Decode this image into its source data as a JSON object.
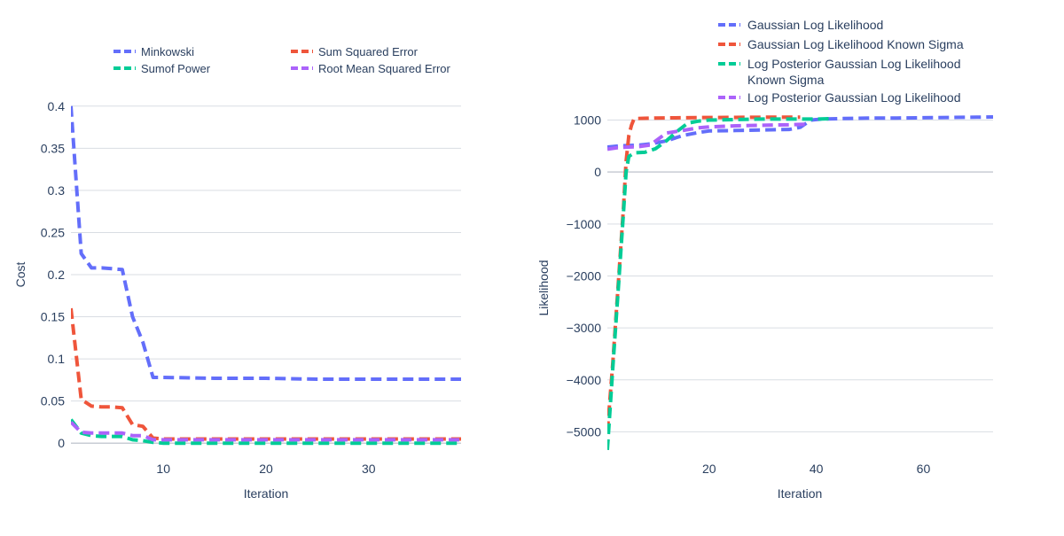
{
  "chart_data": [
    {
      "type": "line",
      "xlabel": "Iteration",
      "ylabel": "Cost",
      "xlim": [
        1,
        39
      ],
      "ylim": [
        -0.005,
        0.405
      ],
      "xticks": [
        10,
        20,
        30
      ],
      "yticks": [
        0,
        0.05,
        0.1,
        0.15,
        0.2,
        0.25,
        0.3,
        0.35,
        0.4
      ],
      "ytick_labels": [
        "0",
        "0.05",
        "0.1",
        "0.15",
        "0.2",
        "0.25",
        "0.3",
        "0.35",
        "0.4"
      ],
      "grid": true,
      "legend_placement": "top",
      "series": [
        {
          "name": "Minkowski",
          "color": "#636efa",
          "dash": "dash",
          "x": [
            1,
            2,
            3,
            4,
            5,
            6,
            7,
            8,
            9,
            10,
            15,
            20,
            25,
            30,
            35,
            39
          ],
          "y": [
            0.4,
            0.225,
            0.208,
            0.208,
            0.207,
            0.206,
            0.15,
            0.12,
            0.078,
            0.078,
            0.077,
            0.077,
            0.076,
            0.076,
            0.076,
            0.076
          ]
        },
        {
          "name": "Sum Squared Error",
          "color": "#EF553B",
          "dash": "dash",
          "x": [
            1,
            2,
            3,
            4,
            5,
            6,
            7,
            8,
            9,
            10,
            15,
            20,
            25,
            30,
            35,
            39
          ],
          "y": [
            0.16,
            0.052,
            0.044,
            0.043,
            0.043,
            0.042,
            0.022,
            0.02,
            0.006,
            0.005,
            0.005,
            0.005,
            0.005,
            0.005,
            0.005,
            0.005
          ]
        },
        {
          "name": "Sumof Power",
          "color": "#00cc96",
          "dash": "dash",
          "x": [
            1,
            2,
            3,
            4,
            5,
            6,
            7,
            8,
            9,
            10,
            15,
            20,
            25,
            30,
            35,
            39
          ],
          "y": [
            0.028,
            0.012,
            0.009,
            0.008,
            0.008,
            0.008,
            0.004,
            0.003,
            0.001,
            0.0,
            0.0,
            0.0,
            0.0,
            0.0,
            0.0,
            0.0
          ]
        },
        {
          "name": "Root Mean Squared Error",
          "color": "#ab63fa",
          "dash": "dash",
          "x": [
            1,
            2,
            3,
            4,
            5,
            6,
            7,
            8,
            9,
            10,
            15,
            20,
            25,
            30,
            35,
            39
          ],
          "y": [
            0.025,
            0.013,
            0.012,
            0.012,
            0.012,
            0.012,
            0.009,
            0.009,
            0.004,
            0.004,
            0.004,
            0.004,
            0.004,
            0.004,
            0.004,
            0.004
          ]
        }
      ]
    },
    {
      "type": "line",
      "xlabel": "Iteration",
      "ylabel": "Likelihood",
      "xlim": [
        1,
        73
      ],
      "ylim": [
        -5300,
        1350
      ],
      "xticks": [
        20,
        40,
        60
      ],
      "yticks": [
        -5000,
        -4000,
        -3000,
        -2000,
        -1000,
        0,
        1000
      ],
      "ytick_labels": [
        "−5000",
        "−4000",
        "−3000",
        "−2000",
        "−1000",
        "0",
        "1000"
      ],
      "grid": true,
      "legend_placement": "top",
      "series": [
        {
          "name": "Gaussian Log Likelihood",
          "color": "#636efa",
          "dash": "dash",
          "x": [
            1,
            3,
            5,
            7,
            9,
            12,
            15,
            18,
            20,
            25,
            30,
            35,
            37,
            39,
            41,
            45,
            50,
            55,
            60,
            65,
            70,
            73
          ],
          "y": [
            480,
            500,
            510,
            520,
            540,
            600,
            700,
            760,
            790,
            800,
            810,
            820,
            860,
            1000,
            1020,
            1030,
            1040,
            1040,
            1045,
            1050,
            1055,
            1060
          ]
        },
        {
          "name": "Gaussian Log Likelihood Known Sigma",
          "color": "#EF553B",
          "dash": "dash",
          "x": [
            1,
            2,
            3,
            4,
            4.5,
            5,
            5.5,
            6,
            8,
            10,
            15,
            20,
            25,
            30,
            35,
            37
          ],
          "y": [
            -5000,
            -3700,
            -2200,
            -700,
            200,
            700,
            900,
            1030,
            1035,
            1040,
            1045,
            1050,
            1052,
            1055,
            1055,
            1055
          ]
        },
        {
          "name": "Log Posterior Gaussian Log Likelihood Known Sigma",
          "color": "#00cc96",
          "dash": "dash",
          "x": [
            1,
            2,
            3,
            4,
            4.5,
            5,
            6,
            8,
            10,
            12,
            14,
            16,
            18,
            20,
            25,
            30,
            35,
            38,
            40,
            43
          ],
          "y": [
            -5350,
            -3800,
            -2300,
            -800,
            0,
            300,
            370,
            380,
            450,
            600,
            780,
            940,
            980,
            1000,
            1010,
            1020,
            1020,
            1020,
            1020,
            1030
          ]
        },
        {
          "name": "Log Posterior Gaussian Log Likelihood",
          "color": "#ab63fa",
          "dash": "dash",
          "x": [
            1,
            3,
            5,
            7,
            9,
            12,
            15,
            18,
            20,
            25,
            30,
            35,
            38
          ],
          "y": [
            440,
            470,
            480,
            490,
            520,
            750,
            800,
            850,
            870,
            890,
            900,
            910,
            920
          ]
        }
      ]
    }
  ]
}
